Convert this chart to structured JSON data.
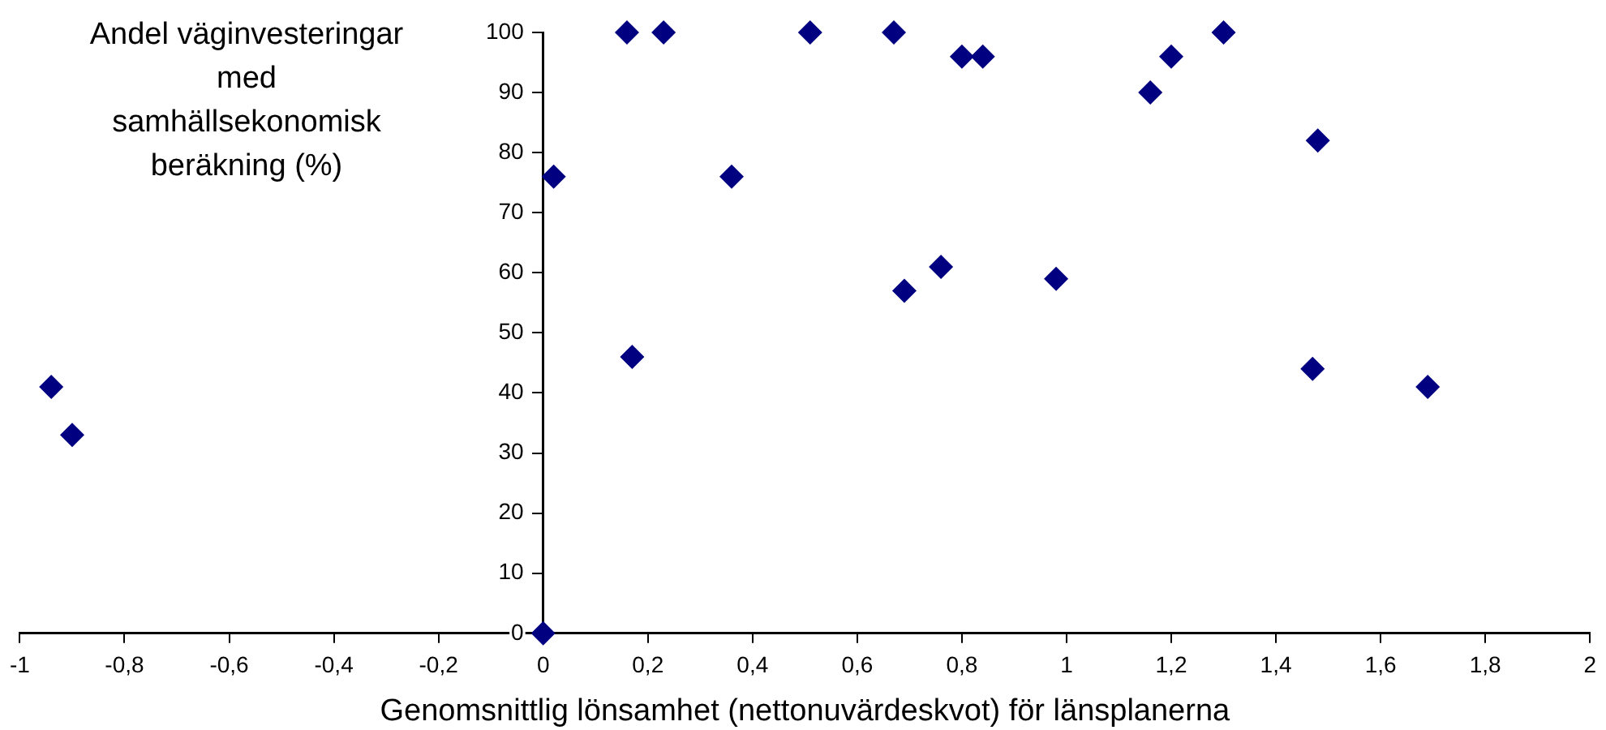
{
  "chart_data": {
    "type": "scatter",
    "xlabel": "Genomsnittlig lönsamhet (nettonuvärdeskvot) för länsplanerna",
    "ylabel": "Andel väginvesteringar med samhällsekonomisk beräkning (%)",
    "series": [
      {
        "color": "#000080",
        "x": [
          -0.94,
          -0.9,
          0,
          0.02,
          0.16,
          0.17,
          0.23,
          0.36,
          0.51,
          0.67,
          0.69,
          0.76,
          0.8,
          0.84,
          0.98,
          1.16,
          1.2,
          1.3,
          1.47,
          1.48,
          1.69
        ],
        "values": [
          41,
          33,
          0,
          76,
          100,
          46,
          100,
          76,
          100,
          100,
          57,
          61,
          96,
          96,
          59,
          90,
          96,
          100,
          44,
          82,
          41
        ]
      }
    ],
    "xlim": [
      -1,
      2
    ],
    "xticks": [
      -1,
      {
        "value": -0.8,
        "label": "-0,8"
      },
      {
        "value": -0.6,
        "label": "-0,6"
      },
      {
        "value": -0.4,
        "label": "-0,4"
      },
      {
        "value": -0.2,
        "label": "-0,2"
      },
      0,
      {
        "value": 0.2,
        "label": "0,2"
      },
      {
        "value": 0.4,
        "label": "0,4"
      },
      {
        "value": 0.6,
        "label": "0,6"
      },
      {
        "value": 0.8,
        "label": "0,8"
      },
      1,
      {
        "value": 1.2,
        "label": "1,2"
      },
      {
        "value": 1.4,
        "label": "1,4"
      },
      {
        "value": 1.6,
        "label": "1,6"
      },
      {
        "value": 1.8,
        "label": "1,8"
      },
      2
    ],
    "ylim": [
      0,
      100
    ],
    "yticks": [
      0,
      10,
      20,
      30,
      40,
      50,
      60,
      70,
      80,
      90,
      100
    ],
    "grid": false,
    "legend": false,
    "marker": "diamond"
  }
}
